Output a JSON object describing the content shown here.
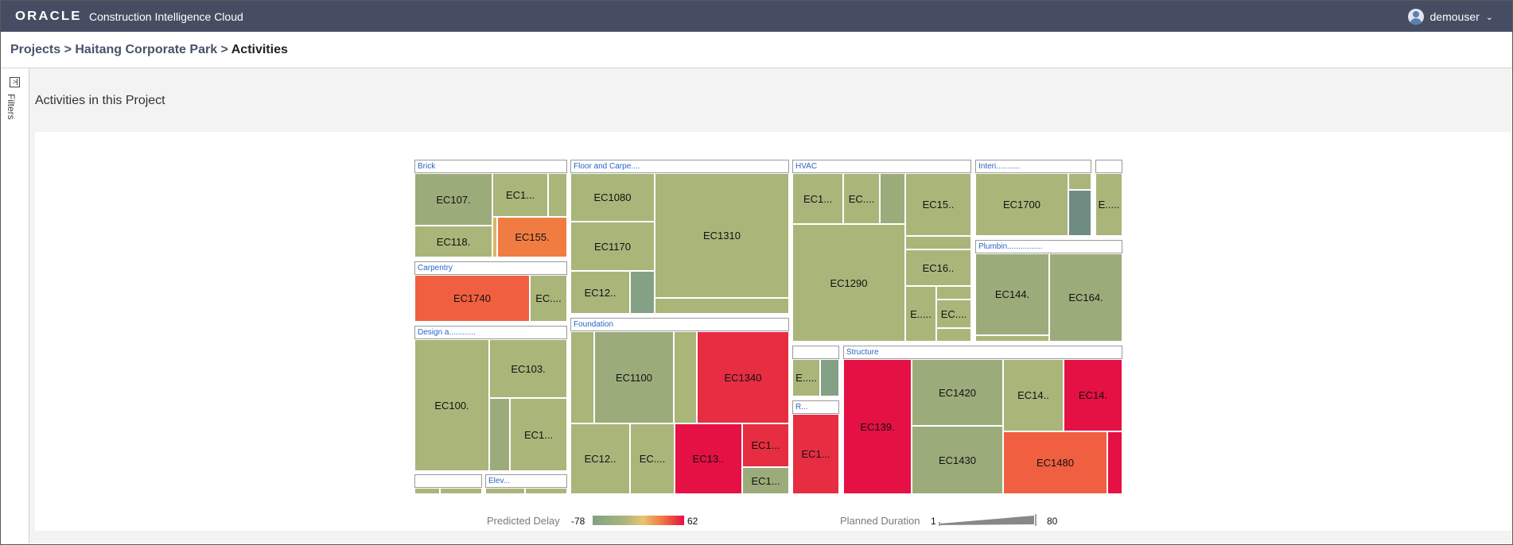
{
  "header": {
    "logo": "ORACLE",
    "app_title": "Construction Intelligence Cloud",
    "user": "demouser",
    "chevron": "⌄"
  },
  "breadcrumb": {
    "projects": "Projects",
    "sep1": " > ",
    "project": "Haitang Corporate Park",
    "sep2": " > ",
    "current": "Activities"
  },
  "sidebar": {
    "filters_label": "Filters",
    "filter_icon_glyph": ">"
  },
  "main": {
    "title": "Activities in this Project"
  },
  "colors": {
    "green": "#9bac7a",
    "green2": "#aab57a",
    "teal": "#84a185",
    "orange": "#f07c42",
    "red_orange": "#f05f40",
    "red": "#e62d42",
    "crimson": "#e51044",
    "topbar": "#464d63"
  },
  "treemap": {
    "groups": {
      "brick": "Brick",
      "carpentry": "Carpentry",
      "design": "Design a............",
      "elev": "Elev...",
      "floor": "Floor and Carpe....",
      "foundation": "Foundation",
      "hvac": "HVAC",
      "interior": "Interi...........",
      "plumbing": "Plumbin................",
      "r": "R...",
      "structure": "Structure"
    },
    "activities": {
      "ec107": "EC107.",
      "ec1_brick": "EC1...",
      "ec118": "EC118.",
      "ec155": "EC155.",
      "ec1740": "EC1740",
      "ec_carp": "EC....",
      "ec100": "EC100.",
      "ec103": "EC103.",
      "ec1_design": "EC1...",
      "ec1080": "EC1080",
      "ec1310": "EC1310",
      "ec1170": "EC1170",
      "ec12_floor": "EC12..",
      "ec1100": "EC1100",
      "ec1340": "EC1340",
      "ec12_found": "EC12..",
      "ec_found": "EC....",
      "ec13_found": "EC13..",
      "ec1_found_a": "EC1...",
      "ec1_found_b": "EC1...",
      "ec1_hvac": "EC1...",
      "ec_hvac": "EC....",
      "ec15_hvac": "EC15..",
      "ec1290": "EC1290",
      "ec16_hvac": "EC16..",
      "e_hvac": "E.....",
      "ec_hvac2": "EC....",
      "ec1700": "EC1700",
      "e_top": "E.....",
      "ec144": "EC144.",
      "ec164": "EC164.",
      "e_small": "E.....",
      "ec1_r": "EC1...",
      "ec139": "EC139.",
      "ec1420": "EC1420",
      "ec14_a": "EC14..",
      "ec14_b": "EC14.",
      "ec1430": "EC1430",
      "ec1480": "EC1480"
    }
  },
  "legend": {
    "delay_label": "Predicted Delay",
    "delay_min": "-78",
    "delay_max": "62",
    "duration_label": "Planned Duration",
    "duration_min": "1",
    "duration_max": "80"
  }
}
